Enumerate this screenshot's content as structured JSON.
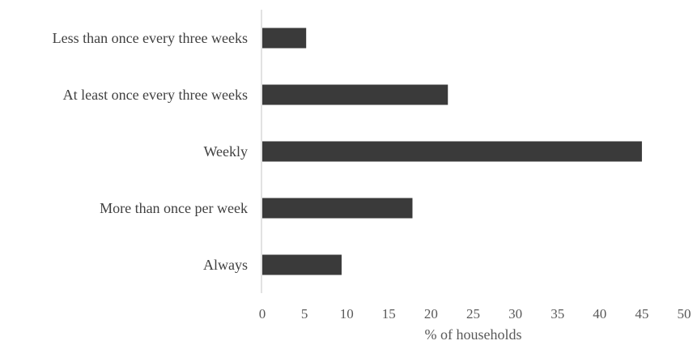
{
  "chart_data": {
    "type": "bar",
    "orientation": "horizontal",
    "categories": [
      "Less than once every three weeks",
      "At least once every three weeks",
      "Weekly",
      "More than once per week",
      "Always"
    ],
    "values": [
      5.2,
      22,
      45,
      17.8,
      9.4
    ],
    "xlabel": "% of households",
    "ylabel": "",
    "xlim": [
      0,
      50
    ],
    "xticks": [
      "0",
      "5",
      "10",
      "15",
      "20",
      "25",
      "30",
      "35",
      "40",
      "45",
      "50"
    ],
    "grid": false,
    "bar_color": "#3a3a3a",
    "axis_color": "#d9d9d9"
  }
}
